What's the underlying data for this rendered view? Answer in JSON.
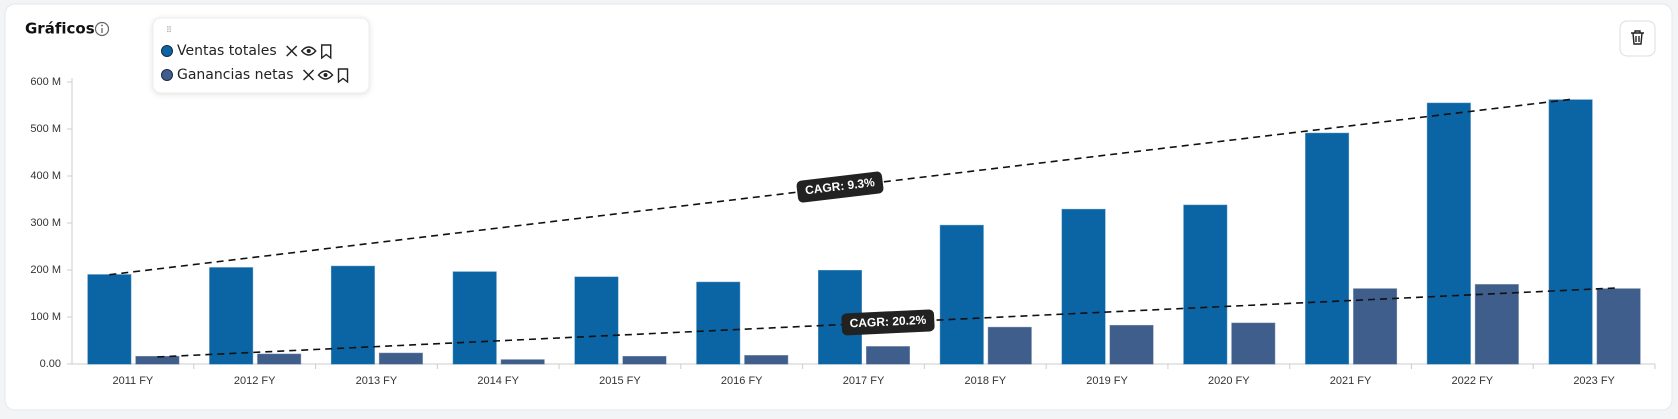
{
  "header": {
    "title": "Gráficos"
  },
  "chart_data": {
    "type": "bar",
    "categories": [
      "2011 FY",
      "2012 FY",
      "2013 FY",
      "2014 FY",
      "2015 FY",
      "2016 FY",
      "2017 FY",
      "2018 FY",
      "2019 FY",
      "2020 FY",
      "2021 FY",
      "2022 FY",
      "2023 FY"
    ],
    "series": [
      {
        "name": "Ventas totales",
        "color": "#0b64a3",
        "values": [
          190,
          205,
          208,
          196,
          185,
          174,
          199,
          295,
          329,
          338,
          491,
          555,
          562
        ]
      },
      {
        "name": "Ganancias netas",
        "color": "#3f5e8b",
        "values": [
          16,
          21,
          23,
          9,
          16,
          18,
          37,
          78,
          82,
          87,
          160,
          169,
          160
        ]
      }
    ],
    "ylim": [
      0,
      600
    ],
    "yticks": [
      {
        "value": 0,
        "label": "0.00"
      },
      {
        "value": 100,
        "label": "100 M"
      },
      {
        "value": 200,
        "label": "200 M"
      },
      {
        "value": 300,
        "label": "300 M"
      },
      {
        "value": 400,
        "label": "400 M"
      },
      {
        "value": 500,
        "label": "500 M"
      },
      {
        "value": 600,
        "label": "600 M"
      }
    ],
    "grid": false,
    "trend_lines": [
      {
        "label": "CAGR: 9.3%",
        "start": 190,
        "end": 563
      },
      {
        "label": "CAGR: 20.2%",
        "start": 15,
        "end": 162
      }
    ]
  }
}
